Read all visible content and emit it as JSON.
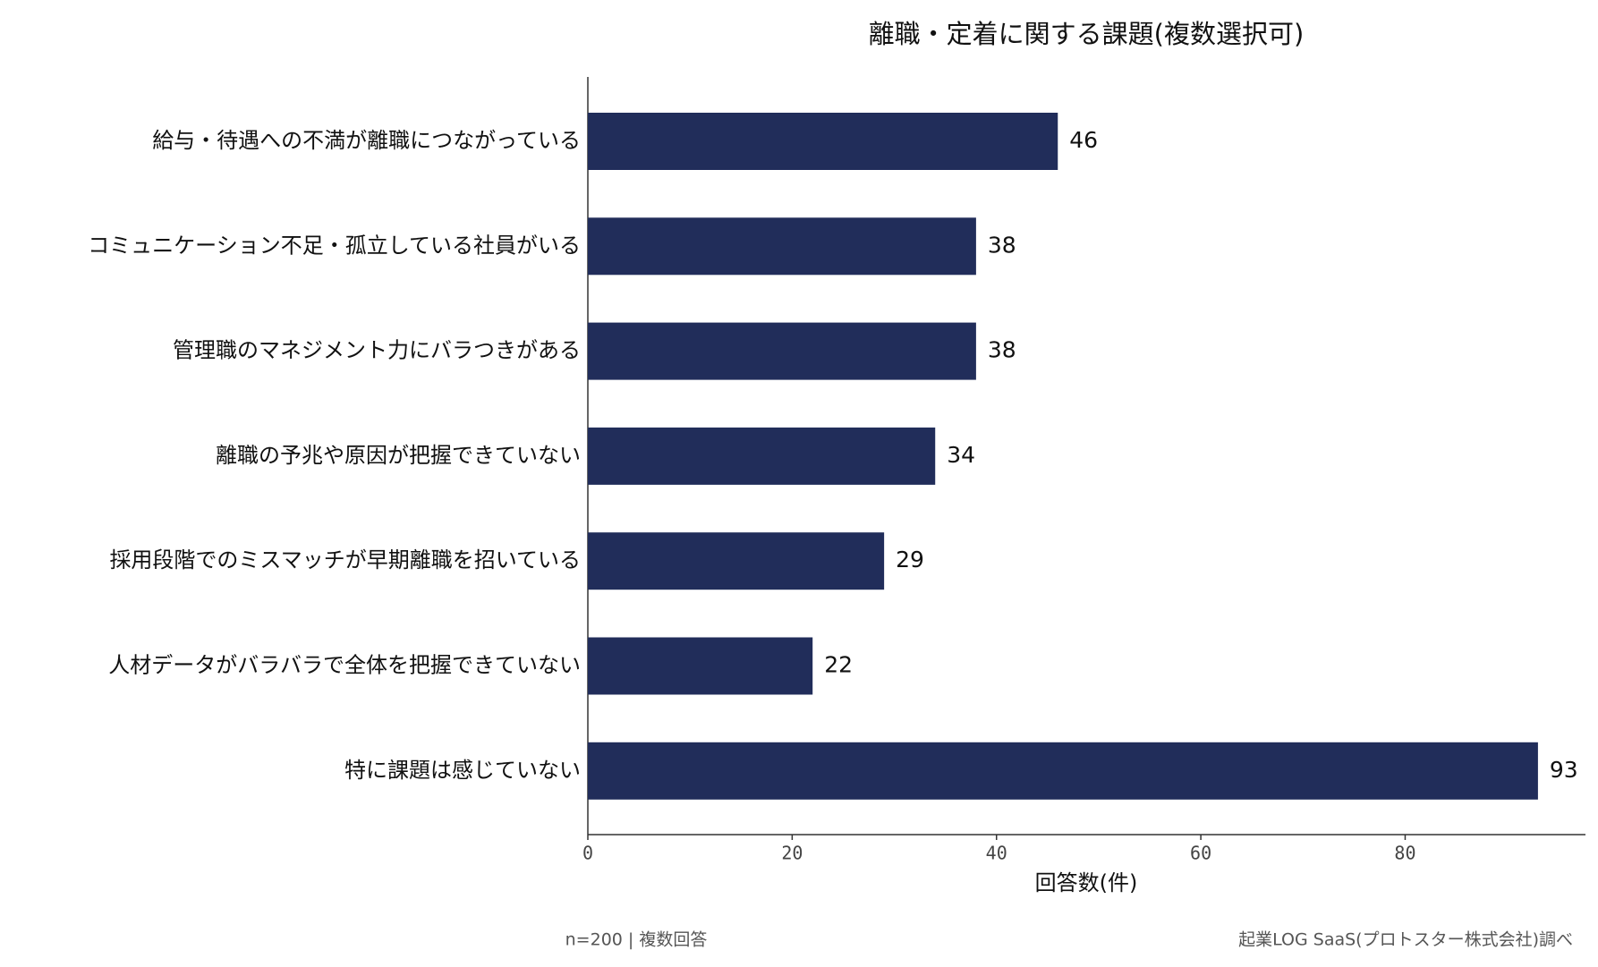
{
  "chart_data": {
    "type": "barh",
    "title": "離職・定着に関する課題(複数選択可)",
    "categories": [
      "給与・待遇への不満が離職につながっている",
      "コミュニケーション不足・孤立している社員がいる",
      "管理職のマネジメント力にバラつきがある",
      "離職の予兆や原因が把握できていない",
      "採用段階でのミスマッチが早期離職を招いている",
      "人材データがバラバラで全体を把握できていない",
      "特に課題は感じていない"
    ],
    "values": [
      46,
      38,
      38,
      34,
      29,
      22,
      93
    ],
    "color": "#212d5a",
    "xlabel": "回答数(件)",
    "xlim": [
      0,
      97.65
    ],
    "xticks": [
      0,
      20,
      40,
      60,
      80
    ],
    "footnote_left": "n=200 | 複数回答",
    "footnote_right": "起業LOG SaaS(プロトスター株式会社)調べ"
  }
}
